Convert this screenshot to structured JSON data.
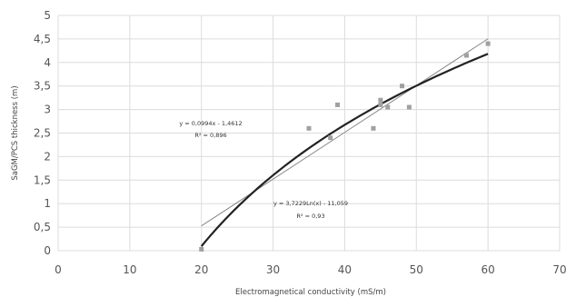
{
  "chart_data": {
    "type": "scatter",
    "title": "",
    "xlabel": "Electromagnetical conductivity (mS/m)",
    "ylabel": "SaGM/PCS  thickness (m)",
    "xlim": [
      0,
      70
    ],
    "ylim": [
      0,
      5
    ],
    "x_ticks": [
      0,
      10,
      20,
      30,
      40,
      50,
      60,
      70
    ],
    "y_ticks": [
      0,
      0.5,
      1,
      1.5,
      2,
      2.5,
      3,
      3.5,
      4,
      4.5,
      5
    ],
    "x_tick_labels": [
      "0",
      "10",
      "20",
      "30",
      "40",
      "50",
      "60",
      "70"
    ],
    "y_tick_labels": [
      "0",
      "0,5",
      "1",
      "1,5",
      "2",
      "2,5",
      "3",
      "3,5",
      "4",
      "4,5",
      "5"
    ],
    "grid": true,
    "legend": "none",
    "colors": {
      "points": "#a0a0a0",
      "linear_fit": "#888888",
      "log_fit": "#222222",
      "grid": "#dcdcdc"
    },
    "series": [
      {
        "points": [
          [
            20,
            0.03
          ],
          [
            35,
            2.6
          ],
          [
            38,
            2.4
          ],
          [
            39,
            3.1
          ],
          [
            44,
            2.6
          ],
          [
            45,
            3.2
          ],
          [
            45,
            3.1
          ],
          [
            46,
            3.05
          ],
          [
            48,
            3.5
          ],
          [
            49,
            3.05
          ],
          [
            57,
            4.15
          ],
          [
            60,
            4.4
          ]
        ]
      }
    ],
    "fits": [
      {
        "type": "linear",
        "slope": 0.0994,
        "intercept": -1.4612,
        "x_range": [
          20,
          60
        ],
        "equation": "y = 0,0994x - 1,4612",
        "r2": "R² = 0,896"
      },
      {
        "type": "log",
        "a": 3.7229,
        "b": -11.059,
        "x_range": [
          20,
          60
        ],
        "equation": "y = 3,7229Ln(x) - 11,059",
        "r2": "R² = 0,93"
      }
    ]
  }
}
